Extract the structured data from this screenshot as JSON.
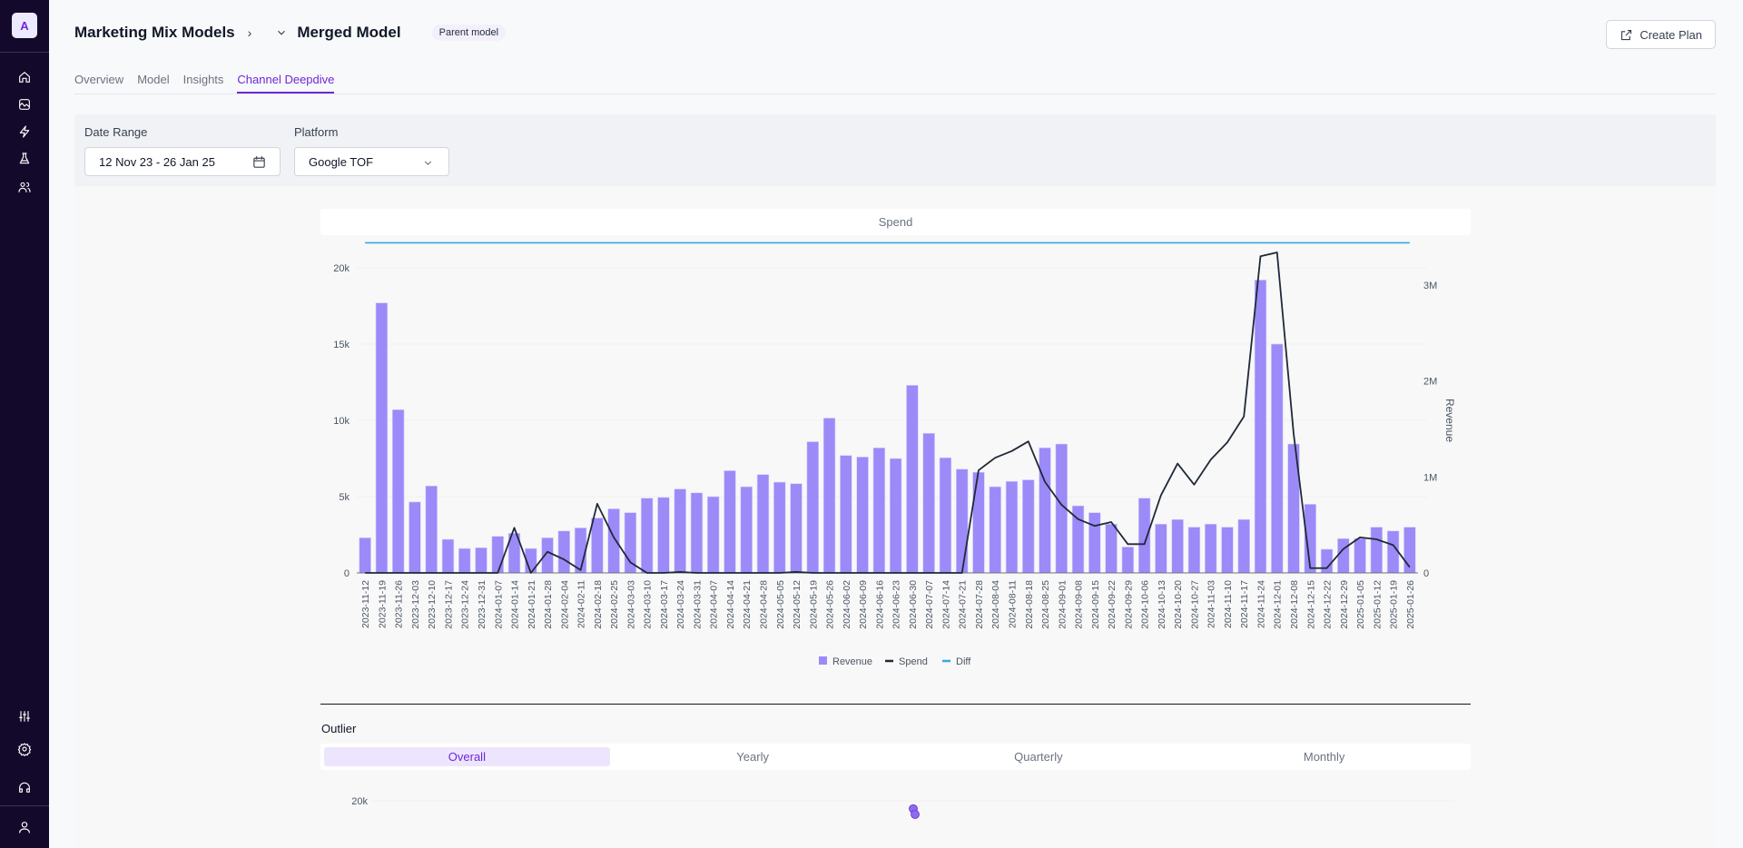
{
  "sidebar": {
    "logo_letter": "A",
    "top_icons": [
      "home-icon",
      "chart-icon",
      "lightning-icon",
      "flask-icon",
      "users-icon"
    ],
    "bottom_icons": [
      "sliders-icon",
      "settings-icon",
      "headphones-icon",
      "user-icon"
    ]
  },
  "header": {
    "breadcrumb_root": "Marketing Mix Models",
    "model_name": "Merged Model",
    "badge": "Parent model",
    "create_plan_label": "Create Plan"
  },
  "tabs": [
    {
      "label": "Overview",
      "active": false
    },
    {
      "label": "Model",
      "active": false
    },
    {
      "label": "Insights",
      "active": false
    },
    {
      "label": "Channel Deepdive",
      "active": true
    }
  ],
  "filters": {
    "date_range_label": "Date Range",
    "date_range_value": "12 Nov 23 - 26 Jan 25",
    "platform_label": "Platform",
    "platform_value": "Google TOF"
  },
  "outlier": {
    "title": "Outlier",
    "tabs": [
      {
        "label": "Overall",
        "active": true
      },
      {
        "label": "Yearly",
        "active": false
      },
      {
        "label": "Quarterly",
        "active": false
      },
      {
        "label": "Monthly",
        "active": false
      }
    ],
    "y_tick_label": "20k",
    "points": [
      {
        "x": "2024-11-24",
        "y": 19300
      },
      {
        "x": "2024-11-24",
        "y": 18800
      }
    ]
  },
  "colors": {
    "accent": "#6d28d9",
    "revenue": "#9b8af8",
    "spend": "#1f2937",
    "diff": "#38a8e0",
    "sidebar_bg": "#130a2b"
  },
  "chart_data": {
    "type": "bar",
    "title": "Spend",
    "left_axis": {
      "ticks": [
        "0",
        "5k",
        "10k",
        "15k",
        "20k"
      ],
      "range": [
        0,
        20000
      ]
    },
    "right_axis": {
      "label": "Revenue",
      "ticks": [
        "0",
        "1M",
        "2M",
        "3M"
      ],
      "range": [
        0,
        3520000
      ]
    },
    "legend": [
      "Revenue",
      "Spend",
      "Diff"
    ],
    "legend_position": "bottom",
    "categories": [
      "2023-11-12",
      "2023-11-19",
      "2023-11-26",
      "2023-12-03",
      "2023-12-10",
      "2023-12-17",
      "2023-12-24",
      "2023-12-31",
      "2024-01-07",
      "2024-01-14",
      "2024-01-21",
      "2024-01-28",
      "2024-02-04",
      "2024-02-11",
      "2024-02-18",
      "2024-02-25",
      "2024-03-03",
      "2024-03-10",
      "2024-03-17",
      "2024-03-24",
      "2024-03-31",
      "2024-04-07",
      "2024-04-14",
      "2024-04-21",
      "2024-04-28",
      "2024-05-05",
      "2024-05-12",
      "2024-05-19",
      "2024-05-26",
      "2024-06-02",
      "2024-06-09",
      "2024-06-16",
      "2024-06-23",
      "2024-06-30",
      "2024-07-07",
      "2024-07-14",
      "2024-07-21",
      "2024-07-28",
      "2024-08-04",
      "2024-08-11",
      "2024-08-18",
      "2024-08-25",
      "2024-09-01",
      "2024-09-08",
      "2024-09-15",
      "2024-09-22",
      "2024-09-29",
      "2024-10-06",
      "2024-10-13",
      "2024-10-20",
      "2024-10-27",
      "2024-11-03",
      "2024-11-10",
      "2024-11-17",
      "2024-11-24",
      "2024-12-01",
      "2024-12-08",
      "2024-12-15",
      "2024-12-22",
      "2024-12-29",
      "2025-01-05",
      "2025-01-12",
      "2025-01-19",
      "2025-01-26"
    ],
    "series": [
      {
        "name": "Revenue",
        "type": "bar",
        "axis": "left",
        "values": [
          2300,
          17700,
          10700,
          4650,
          5700,
          2200,
          1600,
          1650,
          2400,
          2600,
          1600,
          2300,
          2750,
          2950,
          3600,
          4200,
          3950,
          4900,
          4950,
          5500,
          5250,
          5000,
          6700,
          5650,
          6450,
          5950,
          5850,
          8600,
          10150,
          7700,
          7600,
          8200,
          7500,
          12300,
          9150,
          7550,
          6800,
          6600,
          5650,
          6000,
          6100,
          8200,
          8450,
          4400,
          3950,
          3200,
          1700,
          4900,
          3200,
          3500,
          3000,
          3200,
          3000,
          3500,
          19200,
          15000,
          8450,
          4500,
          1550,
          2250,
          2250,
          3000,
          2750,
          3000
        ]
      },
      {
        "name": "Spend",
        "type": "line",
        "axis": "right",
        "values": [
          0,
          0,
          0,
          0,
          0,
          0,
          0,
          0,
          0,
          470000,
          0,
          220000,
          140000,
          30000,
          720000,
          370000,
          110000,
          0,
          0,
          10000,
          0,
          0,
          0,
          0,
          0,
          0,
          10000,
          0,
          0,
          0,
          0,
          0,
          0,
          0,
          0,
          0,
          0,
          1070000,
          1200000,
          1270000,
          1370000,
          950000,
          710000,
          560000,
          490000,
          530000,
          300000,
          300000,
          810000,
          1140000,
          920000,
          1180000,
          1360000,
          1630000,
          3300000,
          3340000,
          1450000,
          50000,
          50000,
          250000,
          370000,
          350000,
          290000,
          60000
        ]
      },
      {
        "name": "Diff",
        "type": "line",
        "axis": "right",
        "values_constant": 3440000
      }
    ]
  }
}
